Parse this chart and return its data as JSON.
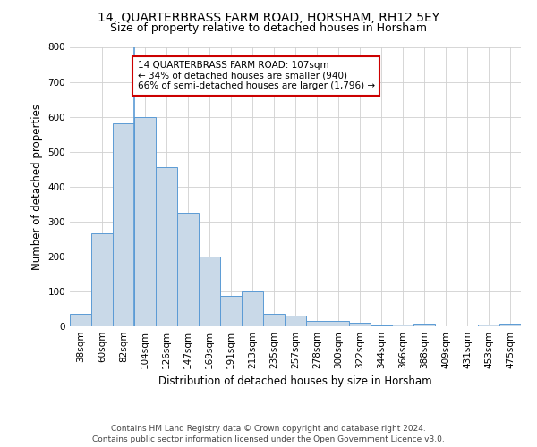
{
  "title": "14, QUARTERBRASS FARM ROAD, HORSHAM, RH12 5EY",
  "subtitle": "Size of property relative to detached houses in Horsham",
  "xlabel": "Distribution of detached houses by size in Horsham",
  "ylabel": "Number of detached properties",
  "categories": [
    "38sqm",
    "60sqm",
    "82sqm",
    "104sqm",
    "126sqm",
    "147sqm",
    "169sqm",
    "191sqm",
    "213sqm",
    "235sqm",
    "257sqm",
    "278sqm",
    "300sqm",
    "322sqm",
    "344sqm",
    "366sqm",
    "388sqm",
    "409sqm",
    "431sqm",
    "453sqm",
    "475sqm"
  ],
  "values": [
    35,
    265,
    580,
    600,
    455,
    325,
    200,
    88,
    100,
    35,
    32,
    15,
    15,
    10,
    2,
    5,
    8,
    0,
    0,
    5,
    7
  ],
  "bar_color": "#c9d9e8",
  "bar_edge_color": "#5b9bd5",
  "annotation_box_text": "14 QUARTERBRASS FARM ROAD: 107sqm\n← 34% of detached houses are smaller (940)\n66% of semi-detached houses are larger (1,796) →",
  "annotation_box_color": "#ffffff",
  "annotation_box_edge_color": "#cc0000",
  "marker_line_index": 2.5,
  "ylim": [
    0,
    800
  ],
  "yticks": [
    0,
    100,
    200,
    300,
    400,
    500,
    600,
    700,
    800
  ],
  "footer_line1": "Contains HM Land Registry data © Crown copyright and database right 2024.",
  "footer_line2": "Contains public sector information licensed under the Open Government Licence v3.0.",
  "title_fontsize": 10,
  "subtitle_fontsize": 9,
  "axis_label_fontsize": 8.5,
  "tick_fontsize": 7.5,
  "annotation_fontsize": 7.5,
  "footer_fontsize": 6.5,
  "background_color": "#ffffff",
  "grid_color": "#d0d0d0"
}
